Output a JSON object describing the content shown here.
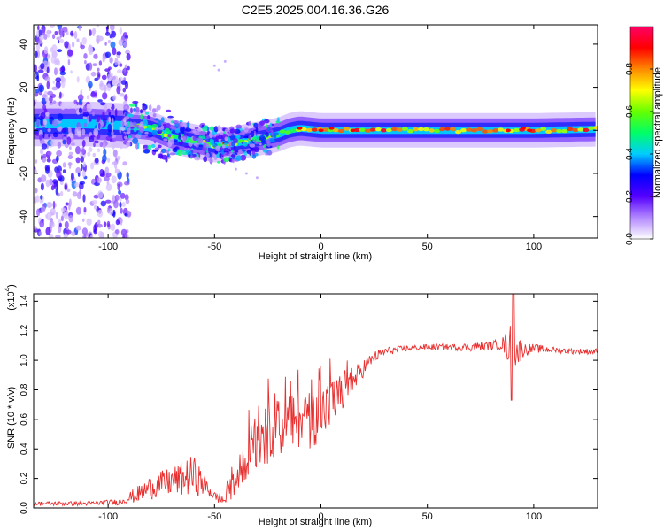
{
  "title": "C2E5.2025.004.16.36.G26",
  "chart_data": [
    {
      "type": "heatmap",
      "title": "C2E5.2025.004.16.36.G26",
      "xlabel": "Height of straight line (km)",
      "ylabel": "Frequency (Hz)",
      "xlim": [
        -135,
        130
      ],
      "ylim": [
        -50,
        49
      ],
      "xticks": [
        "-100",
        "-50",
        "0",
        "50",
        "100"
      ],
      "yticks": [
        "-40",
        "-20",
        "0",
        "20",
        "40"
      ],
      "ridge": {
        "x": [
          -135,
          -110,
          -90,
          -80,
          -70,
          -60,
          -50,
          -40,
          -30,
          -20,
          -15,
          -10,
          0,
          10,
          20,
          50,
          100,
          130
        ],
        "freq": [
          3,
          3,
          2,
          1,
          -3,
          -5,
          -7,
          -6,
          -4,
          -2,
          0,
          1,
          0,
          0,
          0,
          0,
          0,
          0.5
        ]
      },
      "colorbar": {
        "label": "Normalized spectral amplitude",
        "range": [
          0,
          1
        ],
        "ticks": [
          "0.0",
          "0.2",
          "0.4",
          "0.6",
          "0.8"
        ],
        "colors": [
          "#ffffff",
          "#b388ff",
          "#5500ff",
          "#0000ff",
          "#00ccff",
          "#00ff66",
          "#66ff00",
          "#ffff00",
          "#ff8800",
          "#ff0000",
          "#ff0066"
        ]
      }
    },
    {
      "type": "line",
      "xlabel": "Height of straight line (km)",
      "ylabel": "SNR (10 * v/v)",
      "scale_label": "(x10",
      "scale_exp": "4",
      "xlim": [
        -135,
        130
      ],
      "ylim": [
        0,
        1.45
      ],
      "xticks": [
        "-100",
        "-50",
        "0",
        "50",
        "100"
      ],
      "yticks": [
        "0.0",
        "0.2",
        "0.4",
        "0.6",
        "0.8",
        "1.0",
        "1.2",
        "1.4"
      ],
      "series": [
        {
          "name": "SNR",
          "color": "#e83030",
          "x": [
            -135,
            -110,
            -95,
            -90,
            -85,
            -80,
            -75,
            -70,
            -65,
            -60,
            -55,
            -50,
            -45,
            -40,
            -35,
            -30,
            -25,
            -20,
            -15,
            -10,
            -5,
            0,
            5,
            10,
            15,
            20,
            25,
            30,
            40,
            50,
            60,
            70,
            80,
            85,
            88,
            90,
            92,
            95,
            100,
            110,
            120,
            130
          ],
          "mean": [
            0.03,
            0.03,
            0.04,
            0.07,
            0.1,
            0.14,
            0.16,
            0.18,
            0.2,
            0.22,
            0.16,
            0.08,
            0.05,
            0.18,
            0.35,
            0.45,
            0.5,
            0.55,
            0.55,
            0.6,
            0.6,
            0.65,
            0.7,
            0.78,
            0.85,
            0.95,
            1.02,
            1.06,
            1.08,
            1.09,
            1.09,
            1.09,
            1.1,
            1.11,
            1.1,
            1.08,
            1.06,
            1.07,
            1.08,
            1.07,
            1.06,
            1.06
          ],
          "amp": [
            0.015,
            0.015,
            0.02,
            0.04,
            0.06,
            0.08,
            0.09,
            0.1,
            0.12,
            0.14,
            0.08,
            0.03,
            0.05,
            0.1,
            0.15,
            0.18,
            0.2,
            0.2,
            0.2,
            0.2,
            0.2,
            0.2,
            0.18,
            0.14,
            0.1,
            0.06,
            0.04,
            0.03,
            0.02,
            0.02,
            0.02,
            0.03,
            0.03,
            0.04,
            0.12,
            0.2,
            0.12,
            0.05,
            0.03,
            0.02,
            0.02,
            0.02
          ]
        }
      ]
    }
  ]
}
